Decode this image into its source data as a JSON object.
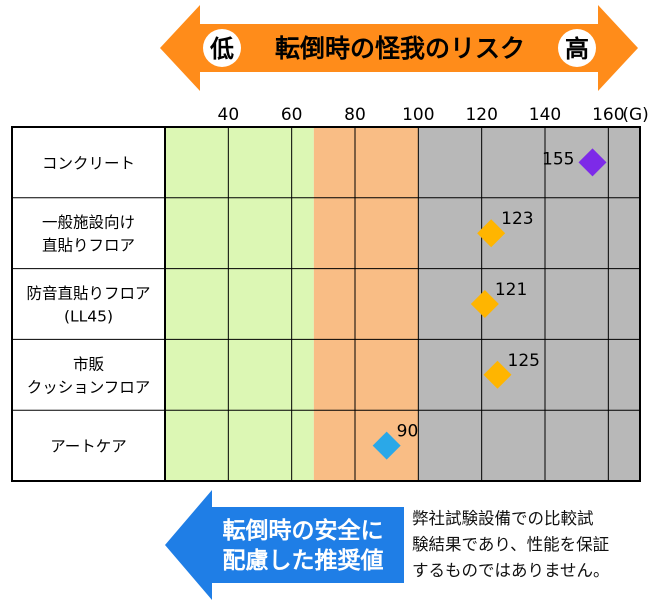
{
  "header": {
    "low_label": "低",
    "title": "転倒時の怪我のリスク",
    "high_label": "高"
  },
  "chart_data": {
    "type": "scatter",
    "title": "転倒時の怪我のリスク",
    "xlabel": "(G)",
    "xlim": [
      20,
      170
    ],
    "ticks": [
      40,
      60,
      80,
      100,
      120,
      140,
      160
    ],
    "unit_label": "(G)",
    "categories": [
      {
        "lines": [
          "コンクリート"
        ]
      },
      {
        "lines": [
          "一般施設向け",
          "直貼りフロア"
        ]
      },
      {
        "lines": [
          "防音直貼りフロア",
          "(LL45)"
        ]
      },
      {
        "lines": [
          "市販",
          "クッションフロア"
        ]
      },
      {
        "lines": [
          "アートケア"
        ]
      }
    ],
    "points": [
      {
        "category": 0,
        "value": 155,
        "label": "155",
        "color": "#7d2ae8"
      },
      {
        "category": 1,
        "value": 123,
        "label": "123",
        "color": "#ffb500"
      },
      {
        "category": 2,
        "value": 121,
        "label": "121",
        "color": "#ffb500"
      },
      {
        "category": 3,
        "value": 125,
        "label": "125",
        "color": "#ffb500"
      },
      {
        "category": 4,
        "value": 90,
        "label": "90",
        "color": "#2aa8e8"
      }
    ],
    "zones": [
      {
        "from": 20,
        "to": 67,
        "color": "#dcf7b4"
      },
      {
        "from": 67,
        "to": 100,
        "color": "#f9bd85"
      },
      {
        "from": 100,
        "to": 170,
        "color": "#b8b8b8"
      }
    ]
  },
  "recommendation": {
    "line1": "転倒時の安全に",
    "line2": "配慮した推奨値"
  },
  "footnote": {
    "line1": "弊社試験設備での比較試",
    "line2": "験結果であり、性能を保証",
    "line3": "するものではありません。"
  },
  "colors": {
    "header_arrow": "#ff8c1a",
    "recommend_arrow": "#1f7ee6",
    "grid": "#000000"
  }
}
